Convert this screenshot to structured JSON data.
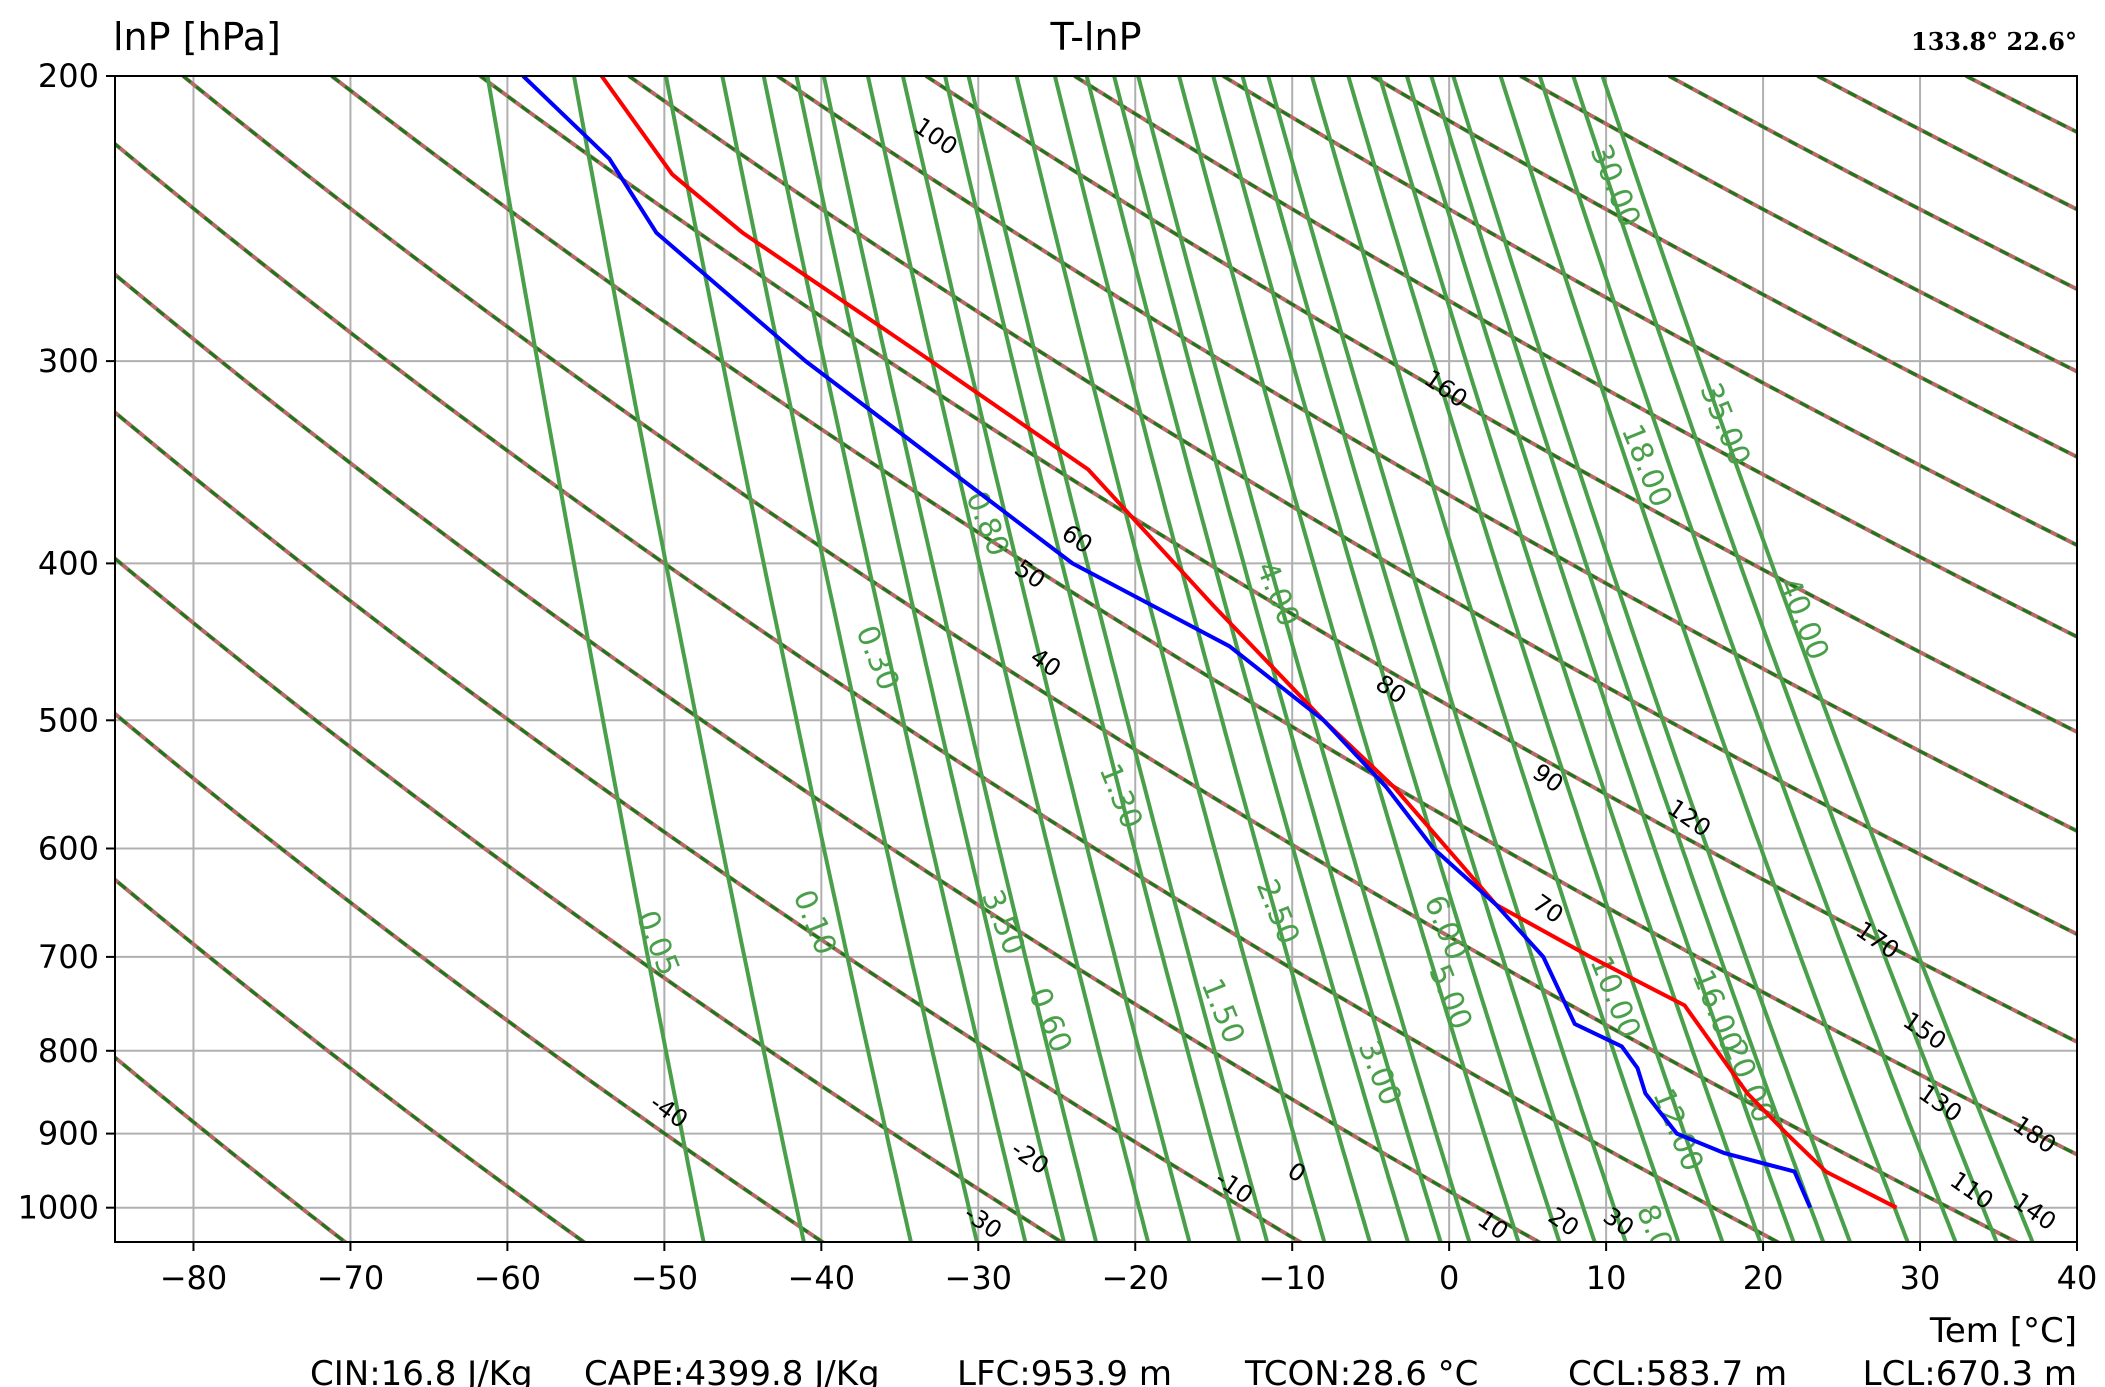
{
  "header": {
    "title": "T-lnP",
    "y_axis_label": "lnP [hPa]",
    "coordinates": "133.8° 22.6°"
  },
  "footer": {
    "x_axis_label": "Tem [°C]",
    "stats": [
      "CIN:16.8 J/Kg",
      "CAPE:4399.8 J/Kg",
      "LFC:953.9 m",
      "TCON:28.6 °C",
      "CCL:583.7 m",
      "LCL:670.3 m"
    ]
  },
  "colors": {
    "temperature_profile": "#ff0000",
    "dewpoint_profile": "#0000ff",
    "dry_adiabat": "#b86a6a",
    "moist_adiabat": "#1a7a1a",
    "mixing_ratio": "#4aa04a",
    "grid": "#b0b0b0"
  },
  "chart_data": {
    "type": "line",
    "title": "T-lnP",
    "xlabel": "Tem [°C]",
    "ylabel": "lnP [hPa]",
    "xlim": [
      -85,
      40
    ],
    "ylim": [
      1050,
      200
    ],
    "y_scale": "log",
    "grid": true,
    "x_ticks": [
      -80,
      -70,
      -60,
      -50,
      -40,
      -30,
      -20,
      -10,
      0,
      10,
      20,
      30,
      40
    ],
    "y_ticks": [
      200,
      300,
      400,
      500,
      600,
      700,
      800,
      900,
      1000
    ],
    "series": [
      {
        "role": "temperature",
        "points": [
          [
            28.5,
            1000
          ],
          [
            24.0,
            950
          ],
          [
            21.5,
            900
          ],
          [
            19.0,
            850
          ],
          [
            15.0,
            750
          ],
          [
            9.0,
            700
          ],
          [
            3.0,
            650
          ],
          [
            -3.5,
            550
          ],
          [
            -8.0,
            500
          ],
          [
            -15.0,
            425
          ],
          [
            -23.0,
            350
          ],
          [
            -33.0,
            300
          ],
          [
            -45.0,
            250
          ],
          [
            -49.5,
            230
          ],
          [
            -54.0,
            200
          ]
        ]
      },
      {
        "role": "dewpoint",
        "points": [
          [
            23.0,
            1000
          ],
          [
            22.0,
            950
          ],
          [
            17.5,
            925
          ],
          [
            14.5,
            900
          ],
          [
            12.5,
            850
          ],
          [
            12.0,
            820
          ],
          [
            11.0,
            795
          ],
          [
            8.0,
            770
          ],
          [
            6.0,
            700
          ],
          [
            3.0,
            650
          ],
          [
            -1.0,
            600
          ],
          [
            -4.0,
            550
          ],
          [
            -8.0,
            500
          ],
          [
            -14.0,
            450
          ],
          [
            -24.0,
            400
          ],
          [
            -41.0,
            300
          ],
          [
            -50.5,
            250
          ],
          [
            -53.5,
            225
          ],
          [
            -59.0,
            200
          ]
        ]
      }
    ],
    "dry_adiabat_labels": [
      "100",
      "160",
      "60",
      "50",
      "40",
      "80",
      "90",
      "120",
      "70",
      "170",
      "150",
      "130",
      "180",
      "110",
      "140",
      "-40",
      "-20",
      "-10",
      "0",
      "-30",
      "10",
      "20",
      "30"
    ],
    "mixing_ratio_labels": [
      "30.00",
      "35.00",
      "40.00",
      "18.00",
      "4.00",
      "0.80",
      "0.30",
      "1.30",
      "0.10",
      "0.05",
      "3.50",
      "0.60",
      "2.50",
      "1.50",
      "6.00",
      "5.00",
      "10.00",
      "3.00",
      "16.00",
      "20.00",
      "12.00",
      "8.0"
    ]
  }
}
